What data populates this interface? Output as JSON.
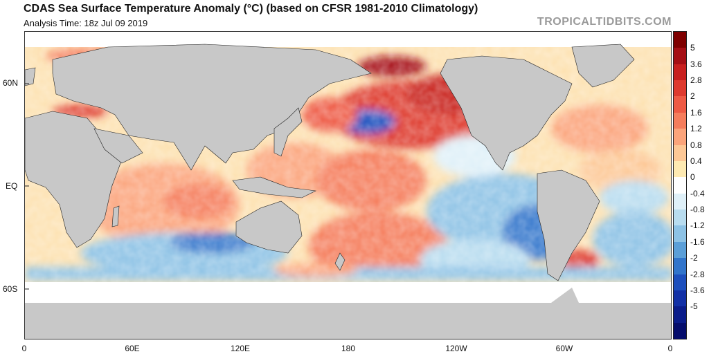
{
  "header": {
    "title": "CDAS Sea Surface Temperature Anomaly (°C) (based on CFSR 1981-2010 Climatology)",
    "analysis_time": "Analysis Time: 18z Jul 09 2019",
    "brand": "TROPICALTIDBITS.COM"
  },
  "map": {
    "lat_labels": [
      "60N",
      "EQ",
      "60S"
    ],
    "lon_labels": [
      "0",
      "60E",
      "120E",
      "180",
      "120W",
      "60W",
      "0"
    ],
    "land_color": "#c8c8c8",
    "ice_color": "#ffffff"
  },
  "colorbar": {
    "labels": [
      "5",
      "3.6",
      "2.8",
      "2",
      "1.6",
      "1.2",
      "0.8",
      "0.4",
      "0",
      "-0.4",
      "-0.8",
      "-1.2",
      "-1.6",
      "-2",
      "-2.8",
      "-3.6",
      "-5"
    ],
    "colors": [
      "#7f0000",
      "#a50f15",
      "#c8201f",
      "#de3a2e",
      "#ee5a44",
      "#f57d5c",
      "#fba47b",
      "#fdc896",
      "#feeab2",
      "#ffffff",
      "#dff0f8",
      "#b8dcef",
      "#8dc2e5",
      "#5b9fd8",
      "#3275cb",
      "#1d4fbd",
      "#1230a6",
      "#0a1c8a",
      "#050d6c"
    ]
  },
  "anomaly_regions": [
    {
      "name": "north-pacific-warm-blob",
      "sign": "warm",
      "color": "#de3a2e"
    },
    {
      "name": "eastern-tropical-pacific-cool",
      "sign": "cool",
      "color": "#5b9fd8"
    },
    {
      "name": "central-pacific-warm",
      "sign": "warm",
      "color": "#f57d5c"
    },
    {
      "name": "southern-ocean-cool",
      "sign": "cool",
      "color": "#3275cb"
    },
    {
      "name": "north-atlantic-mixed",
      "sign": "warm",
      "color": "#fba47b"
    },
    {
      "name": "indian-ocean-warm",
      "sign": "warm",
      "color": "#fdc896"
    }
  ]
}
